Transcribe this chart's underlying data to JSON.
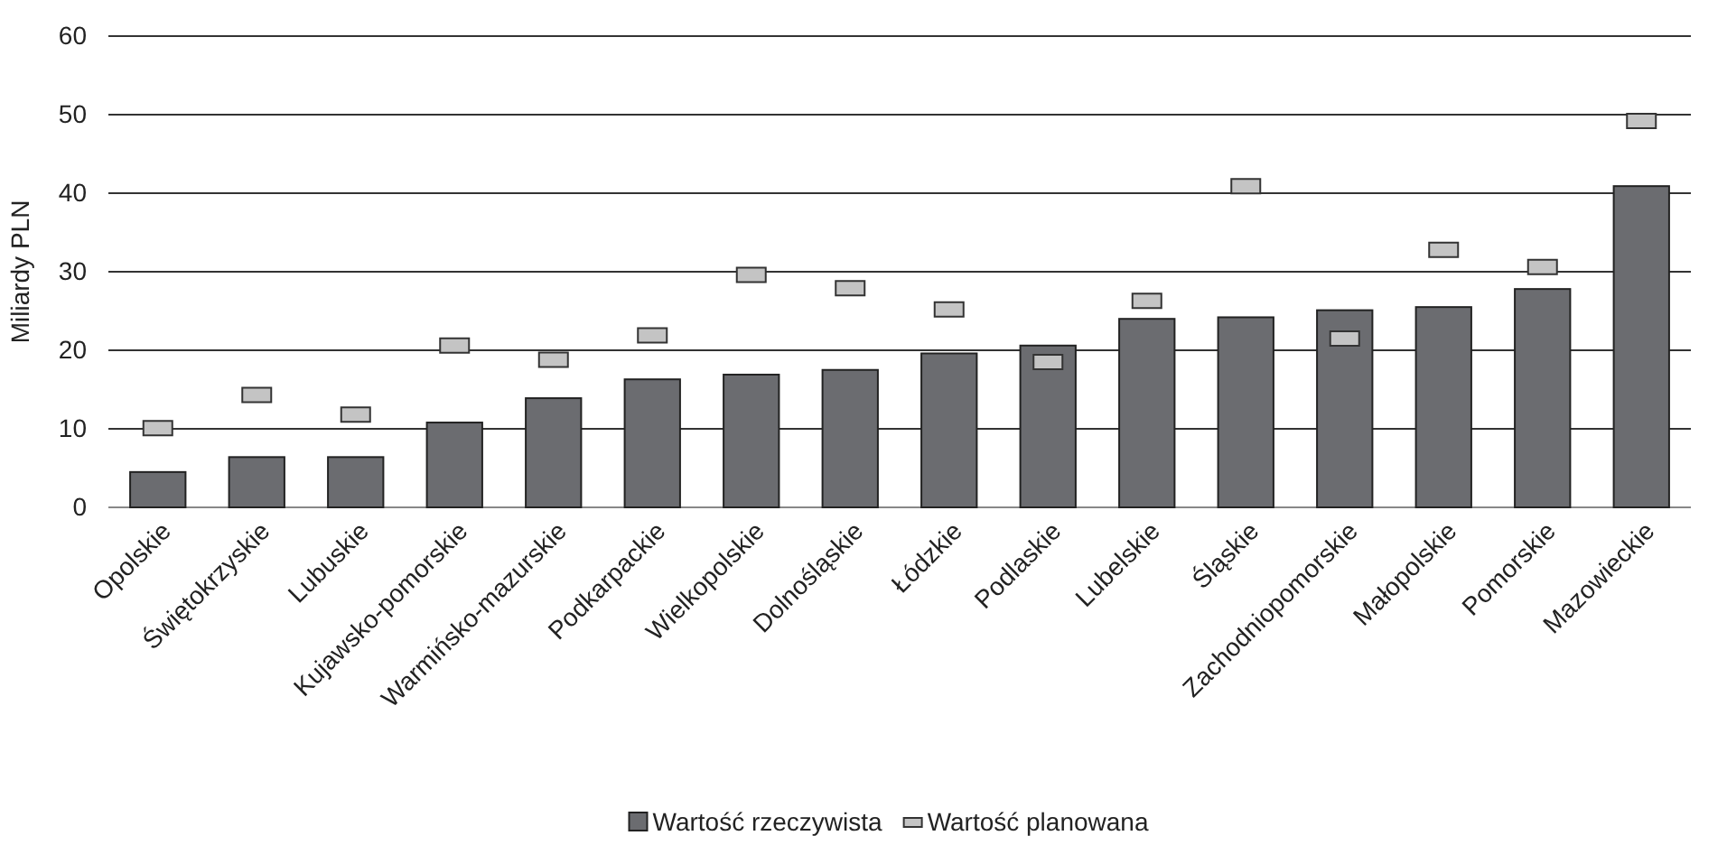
{
  "chart_data": {
    "type": "bar",
    "ylabel": "Miliardy PLN",
    "categories": [
      "Opolskie",
      "Świętokrzyskie",
      "Lubuskie",
      "Kujawsko-pomorskie",
      "Warmińsko-mazurskie",
      "Podkarpackie",
      "Wielkopolskie",
      "Dolnośląskie",
      "Łódzkie",
      "Podlaskie",
      "Lubelskie",
      "Śląskie",
      "Zachodniopomorskie",
      "Małopolskie",
      "Pomorskie",
      "Mazowieckie"
    ],
    "series": [
      {
        "name": "Wartość rzeczywista",
        "color": "#6b6c70",
        "values": [
          4.5,
          6.4,
          6.4,
          10.8,
          13.9,
          16.3,
          16.9,
          17.5,
          19.6,
          20.6,
          24.0,
          24.2,
          25.1,
          25.5,
          27.8,
          40.9
        ]
      },
      {
        "name": "Wartość planowana",
        "type": "scatter",
        "marker": "square",
        "color": "#c4c4c4",
        "values": [
          10.1,
          14.3,
          11.8,
          20.6,
          18.8,
          21.9,
          29.6,
          27.9,
          25.2,
          18.5,
          26.3,
          40.9,
          21.5,
          32.8,
          30.6,
          49.2
        ]
      }
    ],
    "ylim": [
      0,
      60
    ],
    "yticks": [
      0,
      10,
      20,
      30,
      40,
      50,
      60
    ],
    "grid": "y",
    "legend": "bottom"
  }
}
